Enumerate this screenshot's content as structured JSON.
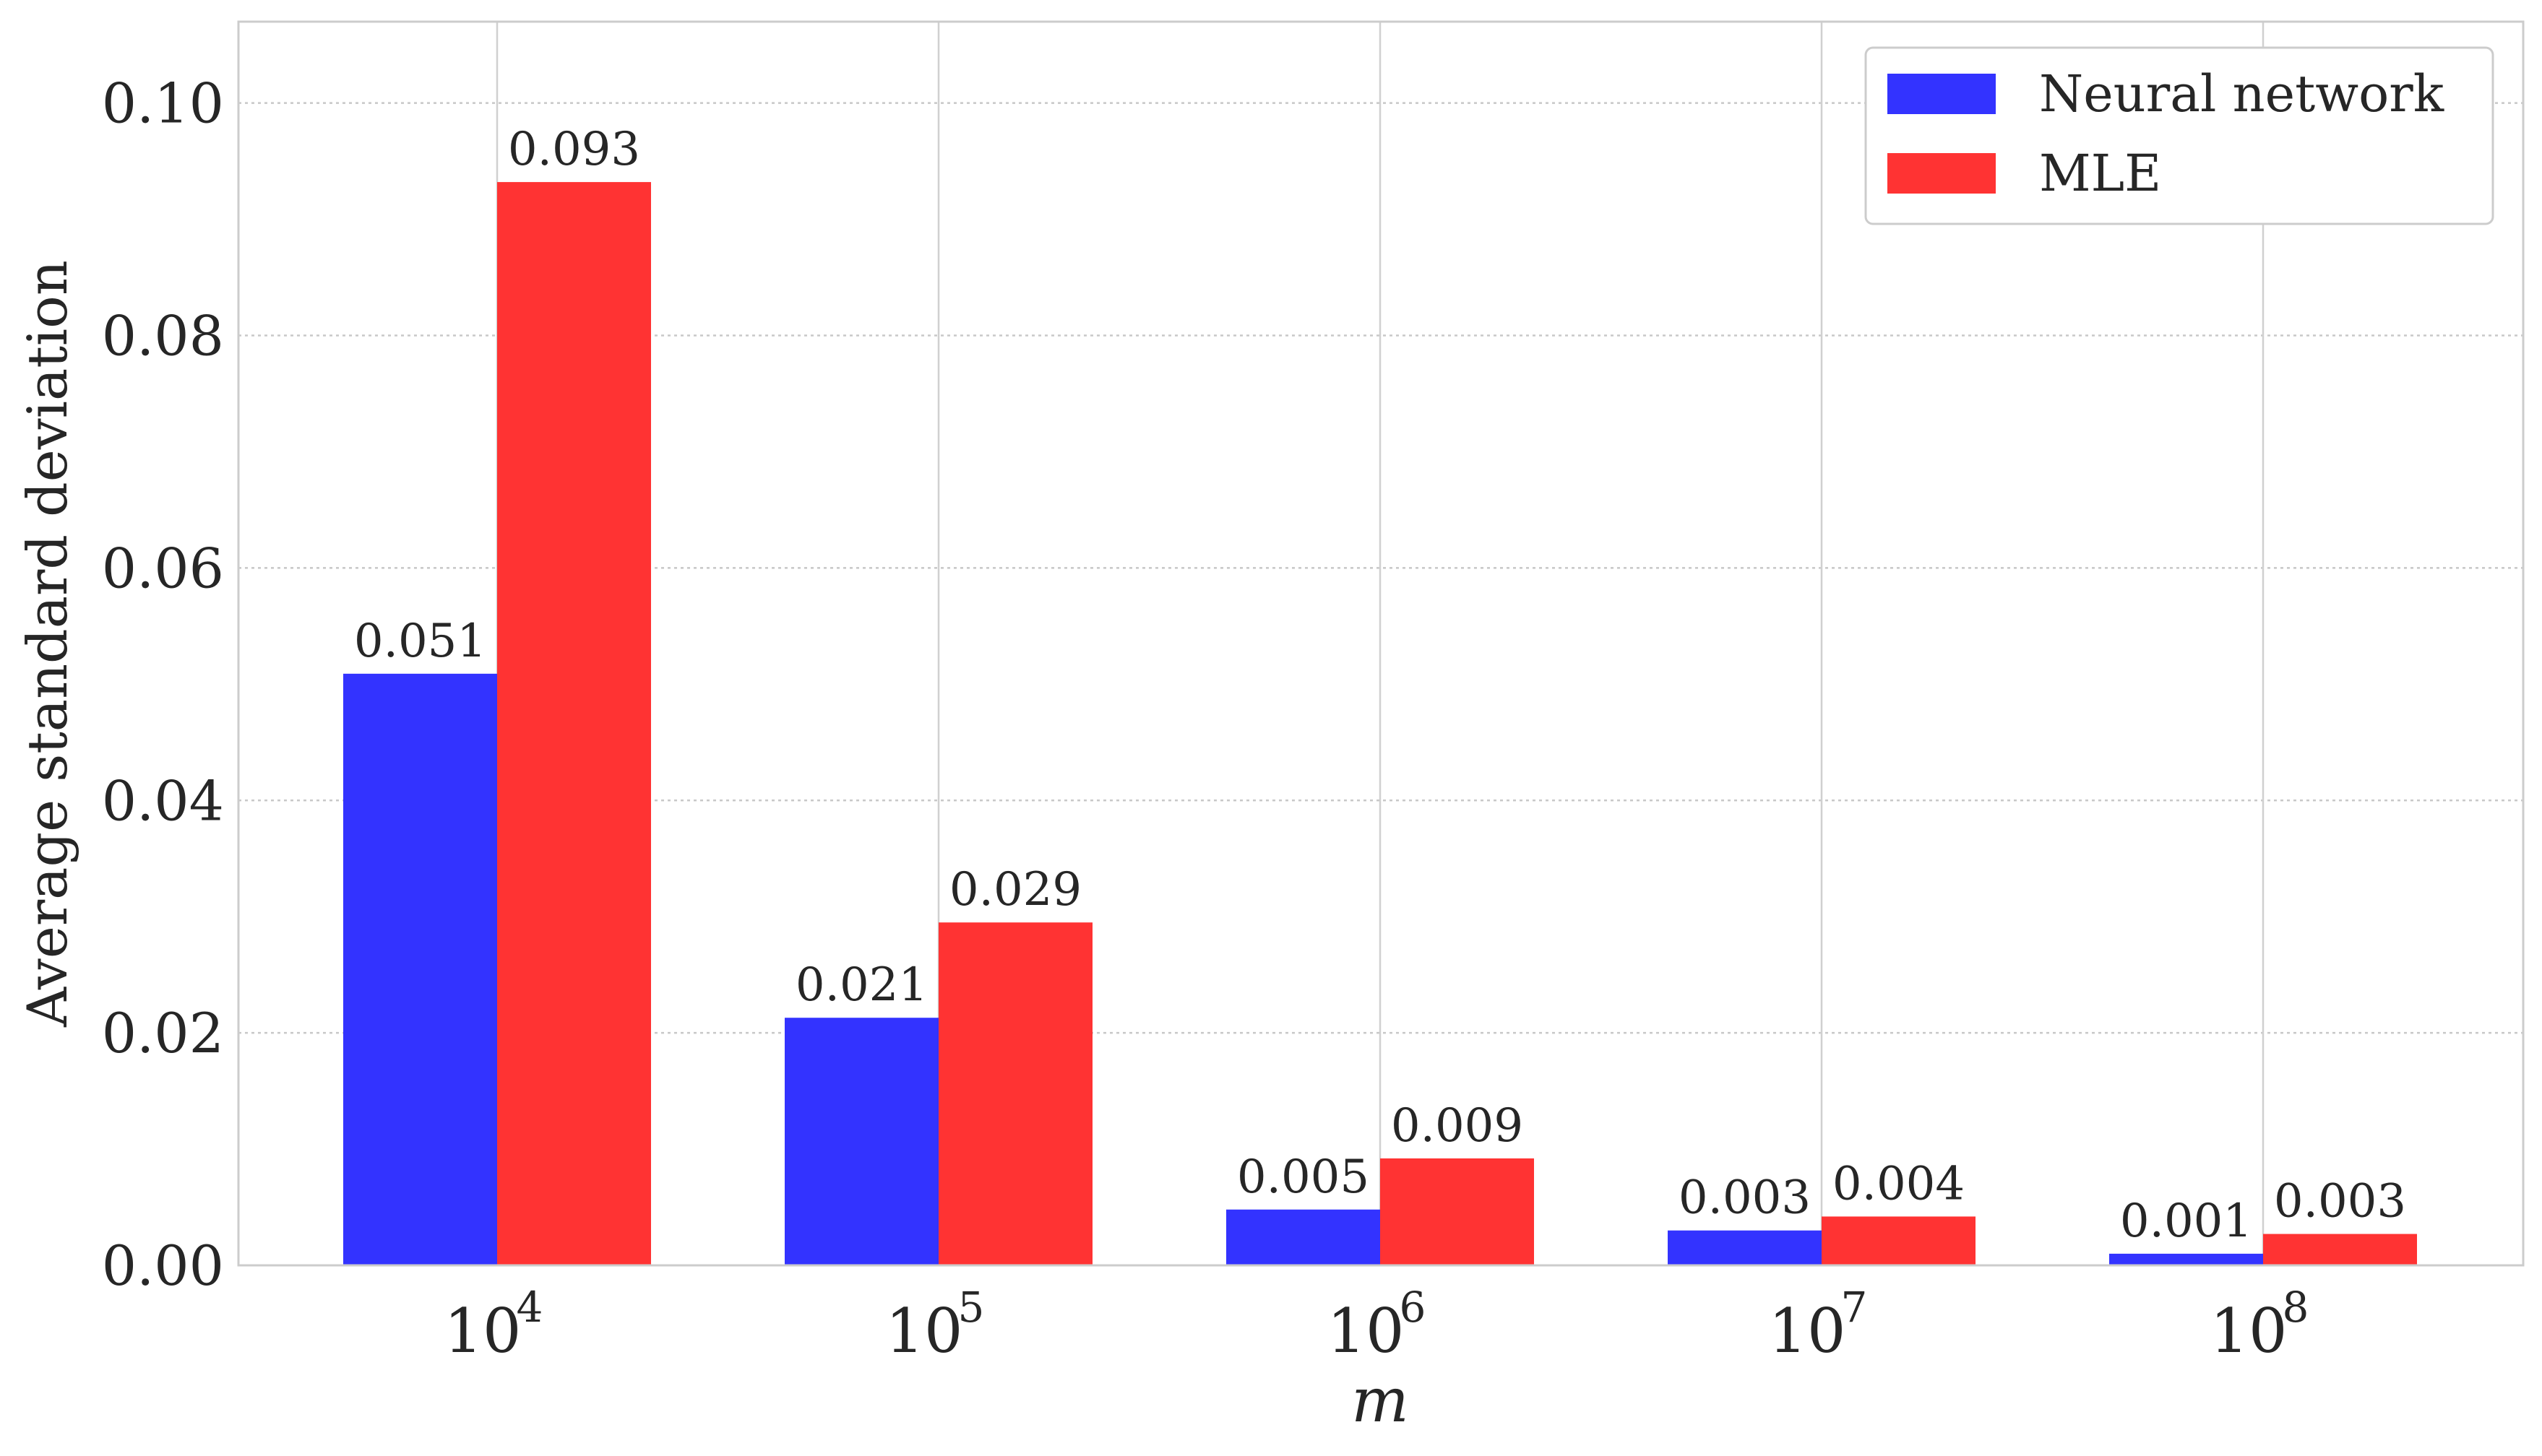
{
  "chart_data": {
    "type": "bar",
    "categories": [
      "10^4",
      "10^5",
      "10^6",
      "10^7",
      "10^8"
    ],
    "category_display": [
      {
        "base": "10",
        "exp": "4"
      },
      {
        "base": "10",
        "exp": "5"
      },
      {
        "base": "10",
        "exp": "6"
      },
      {
        "base": "10",
        "exp": "7"
      },
      {
        "base": "10",
        "exp": "8"
      }
    ],
    "series": [
      {
        "name": "Neural network",
        "color": "#3333ff",
        "values": [
          0.0509,
          0.0213,
          0.0048,
          0.003,
          0.001
        ],
        "labels": [
          "0.051",
          "0.021",
          "0.005",
          "0.003",
          "0.001"
        ]
      },
      {
        "name": "MLE",
        "color": "#ff3333",
        "values": [
          0.0932,
          0.0295,
          0.0092,
          0.0042,
          0.0027
        ],
        "labels": [
          "0.093",
          "0.029",
          "0.009",
          "0.004",
          "0.003"
        ]
      }
    ],
    "xlabel": "m",
    "ylabel": "Average standard deviation",
    "ylim": [
      0,
      0.107
    ],
    "yticks": [
      0.0,
      0.02,
      0.04,
      0.06,
      0.08,
      0.1
    ],
    "ytick_labels": [
      "0.00",
      "0.02",
      "0.04",
      "0.06",
      "0.08",
      "0.10"
    ],
    "grid": true,
    "legend_position": "top-right"
  }
}
